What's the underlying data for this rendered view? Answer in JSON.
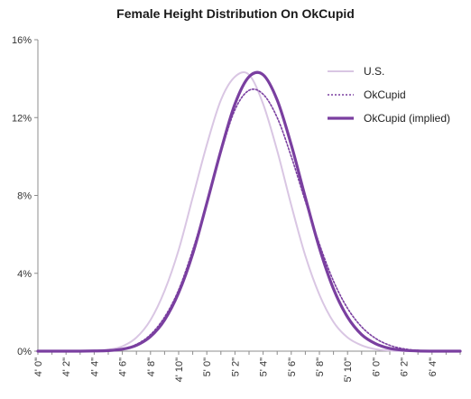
{
  "chart_data": {
    "type": "line",
    "title": "Female Height Distribution On OkCupid",
    "xlabel": "",
    "ylabel": "",
    "x_unit": "inches",
    "xlim": [
      48,
      78
    ],
    "ylim": [
      0,
      16
    ],
    "y_ticks": [
      {
        "value": 0,
        "label": "0%"
      },
      {
        "value": 4,
        "label": "4%"
      },
      {
        "value": 8,
        "label": "8%"
      },
      {
        "value": 12,
        "label": "12%"
      },
      {
        "value": 16,
        "label": "16%"
      }
    ],
    "x_ticks": [
      {
        "value": 48,
        "label": "4' 0\""
      },
      {
        "value": 50,
        "label": "4' 2\""
      },
      {
        "value": 52,
        "label": "4' 4\""
      },
      {
        "value": 54,
        "label": "4' 6\""
      },
      {
        "value": 56,
        "label": "4' 8\""
      },
      {
        "value": 58,
        "label": "4' 10\""
      },
      {
        "value": 60,
        "label": "5' 0\""
      },
      {
        "value": 62,
        "label": "5' 2\""
      },
      {
        "value": 64,
        "label": "5' 4\""
      },
      {
        "value": 66,
        "label": "5' 6\""
      },
      {
        "value": 68,
        "label": "5' 8\""
      },
      {
        "value": 70,
        "label": "5' 10\""
      },
      {
        "value": 72,
        "label": "6' 0\""
      },
      {
        "value": 74,
        "label": "6' 2\""
      },
      {
        "value": 76,
        "label": "6' 4\""
      }
    ],
    "x": [
      48,
      49,
      50,
      51,
      52,
      53,
      54,
      55,
      56,
      57,
      58,
      59,
      60,
      61,
      62,
      63,
      64,
      65,
      66,
      67,
      68,
      69,
      70,
      71,
      72,
      73,
      74,
      75,
      76,
      77,
      78
    ],
    "series": [
      {
        "name": "U.S.",
        "color": "#d9c6e3",
        "style": "solid",
        "values": [
          0,
          0,
          0,
          0,
          0.02,
          0.08,
          0.25,
          0.7,
          1.6,
          3.1,
          5.2,
          7.9,
          10.6,
          12.9,
          14.1,
          14.2,
          12.7,
          10.3,
          7.5,
          4.9,
          2.9,
          1.5,
          0.7,
          0.3,
          0.1,
          0.03,
          0,
          0,
          0,
          0,
          0
        ]
      },
      {
        "name": "OkCupid",
        "color": "#7a3fa0",
        "style": "dotted",
        "values": [
          0,
          0,
          0,
          0,
          0.01,
          0.04,
          0.12,
          0.35,
          0.85,
          1.75,
          3.15,
          5.2,
          7.6,
          10.2,
          12.4,
          13.4,
          13.2,
          12.0,
          10.0,
          7.7,
          5.5,
          3.6,
          2.2,
          1.25,
          0.65,
          0.3,
          0.12,
          0.04,
          0.01,
          0,
          0
        ]
      },
      {
        "name": "OkCupid (implied)",
        "color": "#7a3fa0",
        "style": "solid-thick",
        "values": [
          0,
          0,
          0,
          0,
          0.01,
          0.03,
          0.1,
          0.3,
          0.75,
          1.6,
          3.0,
          5.0,
          7.6,
          10.3,
          12.7,
          14.1,
          14.2,
          12.9,
          10.6,
          7.9,
          5.3,
          3.2,
          1.75,
          0.85,
          0.38,
          0.14,
          0.05,
          0.01,
          0,
          0,
          0
        ]
      }
    ],
    "legend_position": "top-right",
    "grid": false
  }
}
